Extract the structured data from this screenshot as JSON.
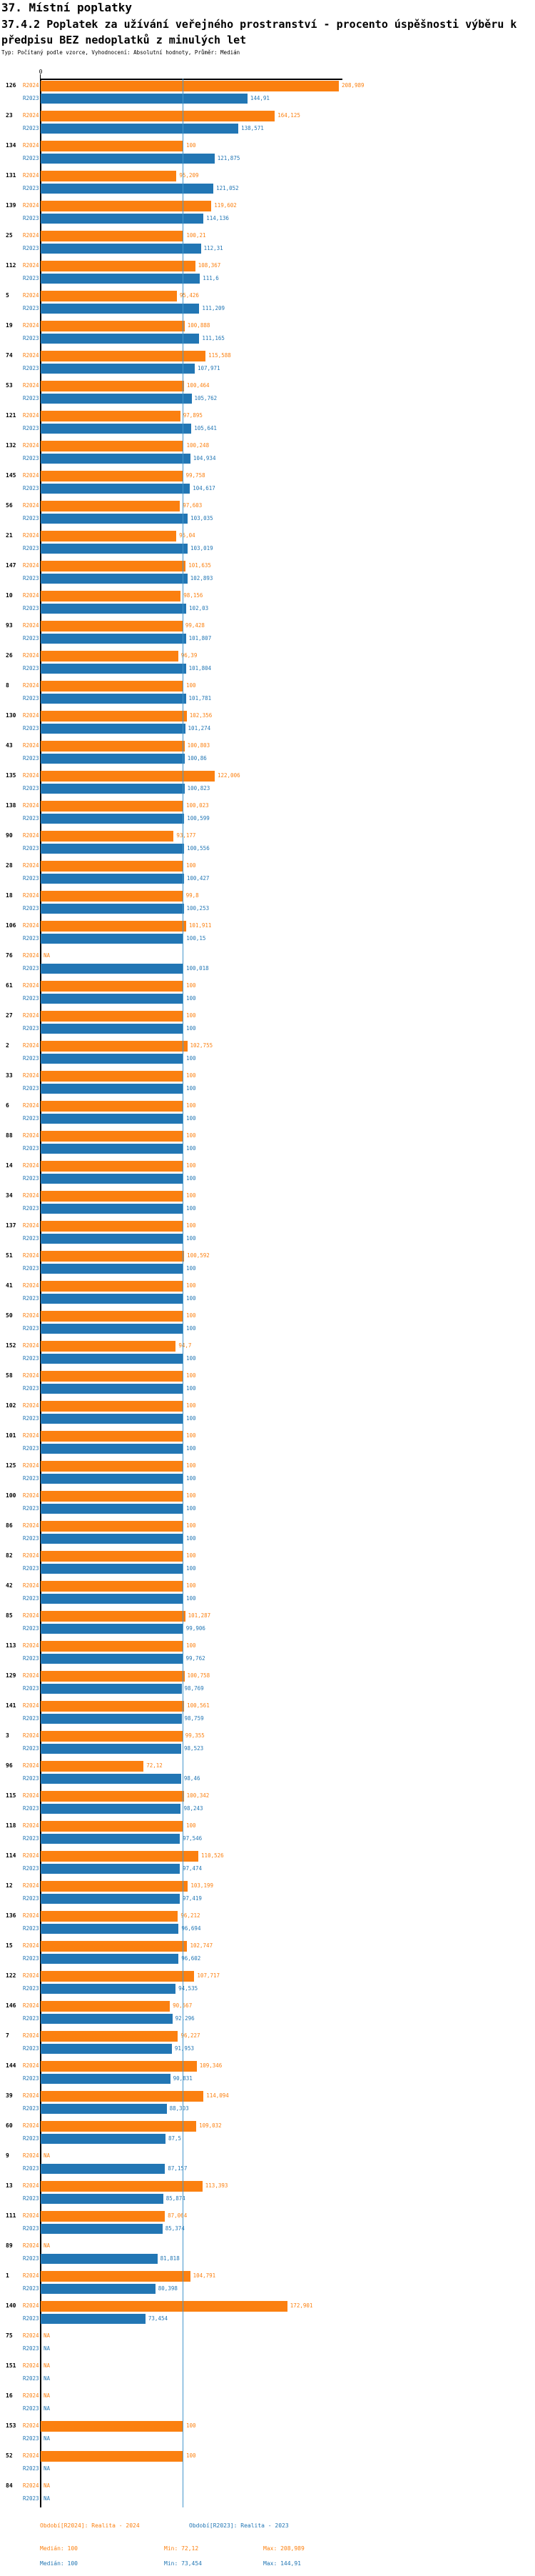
{
  "header": {
    "title": "37. Místní poplatky",
    "subtitle": "37.4.2 Poplatek za užívání veřejného prostranství - procento úspěšnosti výběru k předpisu BEZ nedoplatků z minulých let",
    "meta": "Typ: Počítaný podle vzorce, Vyhodnocení: Absolutní hodnoty, Průměr: Medián"
  },
  "chart_data": {
    "type": "bar",
    "orientation": "horizontal",
    "title": "37.4.2 Poplatek za užívání veřejného prostranství - procento úspěšnosti výběru k předpisu BEZ nedoplatků z minulých let",
    "x_axis": {
      "origin_label": "0",
      "min": 0,
      "max_visible": 211,
      "median_line_value": 100,
      "gridlines": false
    },
    "series_names": [
      "R2024",
      "R2023"
    ],
    "colors": {
      "R2024": "#fb8010",
      "R2023": "#2276b4",
      "median_line": "#4597cb"
    },
    "value_format": "decimal comma, NA = missing",
    "groups": [
      {
        "id": "126",
        "R2024": "208,989",
        "R2023": "144,91"
      },
      {
        "id": "23",
        "R2024": "164,125",
        "R2023": "138,571"
      },
      {
        "id": "134",
        "R2024": "100",
        "R2023": "121,875"
      },
      {
        "id": "131",
        "R2024": "95,209",
        "R2023": "121,052"
      },
      {
        "id": "139",
        "R2024": "119,602",
        "R2023": "114,136"
      },
      {
        "id": "25",
        "R2024": "100,21",
        "R2023": "112,31"
      },
      {
        "id": "112",
        "R2024": "108,367",
        "R2023": "111,6"
      },
      {
        "id": "5",
        "R2024": "95,426",
        "R2023": "111,209"
      },
      {
        "id": "19",
        "R2024": "100,888",
        "R2023": "111,165"
      },
      {
        "id": "74",
        "R2024": "115,588",
        "R2023": "107,971"
      },
      {
        "id": "53",
        "R2024": "100,464",
        "R2023": "105,762"
      },
      {
        "id": "121",
        "R2024": "97,895",
        "R2023": "105,641"
      },
      {
        "id": "132",
        "R2024": "100,248",
        "R2023": "104,934"
      },
      {
        "id": "145",
        "R2024": "99,758",
        "R2023": "104,617"
      },
      {
        "id": "56",
        "R2024": "97,603",
        "R2023": "103,035"
      },
      {
        "id": "21",
        "R2024": "95,04",
        "R2023": "103,019"
      },
      {
        "id": "147",
        "R2024": "101,635",
        "R2023": "102,893"
      },
      {
        "id": "10",
        "R2024": "98,156",
        "R2023": "102,03"
      },
      {
        "id": "93",
        "R2024": "99,428",
        "R2023": "101,807"
      },
      {
        "id": "26",
        "R2024": "96,39",
        "R2023": "101,804"
      },
      {
        "id": "8",
        "R2024": "100",
        "R2023": "101,781"
      },
      {
        "id": "130",
        "R2024": "102,356",
        "R2023": "101,274"
      },
      {
        "id": "43",
        "R2024": "100,803",
        "R2023": "100,86"
      },
      {
        "id": "135",
        "R2024": "122,006",
        "R2023": "100,823"
      },
      {
        "id": "138",
        "R2024": "100,023",
        "R2023": "100,599"
      },
      {
        "id": "90",
        "R2024": "93,177",
        "R2023": "100,556"
      },
      {
        "id": "28",
        "R2024": "100",
        "R2023": "100,427"
      },
      {
        "id": "18",
        "R2024": "99,8",
        "R2023": "100,253"
      },
      {
        "id": "106",
        "R2024": "101,911",
        "R2023": "100,15"
      },
      {
        "id": "76",
        "R2024": "NA",
        "R2023": "100,018"
      },
      {
        "id": "61",
        "R2024": "100",
        "R2023": "100"
      },
      {
        "id": "27",
        "R2024": "100",
        "R2023": "100"
      },
      {
        "id": "2",
        "R2024": "102,755",
        "R2023": "100"
      },
      {
        "id": "33",
        "R2024": "100",
        "R2023": "100"
      },
      {
        "id": "6",
        "R2024": "100",
        "R2023": "100"
      },
      {
        "id": "88",
        "R2024": "100",
        "R2023": "100"
      },
      {
        "id": "14",
        "R2024": "100",
        "R2023": "100"
      },
      {
        "id": "34",
        "R2024": "100",
        "R2023": "100"
      },
      {
        "id": "137",
        "R2024": "100",
        "R2023": "100"
      },
      {
        "id": "51",
        "R2024": "100,592",
        "R2023": "100"
      },
      {
        "id": "41",
        "R2024": "100",
        "R2023": "100"
      },
      {
        "id": "50",
        "R2024": "100",
        "R2023": "100"
      },
      {
        "id": "152",
        "R2024": "94,7",
        "R2023": "100"
      },
      {
        "id": "58",
        "R2024": "100",
        "R2023": "100"
      },
      {
        "id": "102",
        "R2024": "100",
        "R2023": "100"
      },
      {
        "id": "101",
        "R2024": "100",
        "R2023": "100"
      },
      {
        "id": "125",
        "R2024": "100",
        "R2023": "100"
      },
      {
        "id": "100",
        "R2024": "100",
        "R2023": "100"
      },
      {
        "id": "86",
        "R2024": "100",
        "R2023": "100"
      },
      {
        "id": "82",
        "R2024": "100",
        "R2023": "100"
      },
      {
        "id": "42",
        "R2024": "100",
        "R2023": "100"
      },
      {
        "id": "85",
        "R2024": "101,287",
        "R2023": "99,906"
      },
      {
        "id": "113",
        "R2024": "100",
        "R2023": "99,762"
      },
      {
        "id": "129",
        "R2024": "100,758",
        "R2023": "98,769"
      },
      {
        "id": "141",
        "R2024": "100,561",
        "R2023": "98,759"
      },
      {
        "id": "3",
        "R2024": "99,355",
        "R2023": "98,523"
      },
      {
        "id": "96",
        "R2024": "72,12",
        "R2023": "98,46"
      },
      {
        "id": "115",
        "R2024": "100,342",
        "R2023": "98,243"
      },
      {
        "id": "118",
        "R2024": "100",
        "R2023": "97,546"
      },
      {
        "id": "114",
        "R2024": "110,526",
        "R2023": "97,474"
      },
      {
        "id": "12",
        "R2024": "103,199",
        "R2023": "97,419"
      },
      {
        "id": "136",
        "R2024": "96,212",
        "R2023": "96,694"
      },
      {
        "id": "15",
        "R2024": "102,747",
        "R2023": "96,602"
      },
      {
        "id": "122",
        "R2024": "107,717",
        "R2023": "94,535"
      },
      {
        "id": "146",
        "R2024": "90,567",
        "R2023": "92,296"
      },
      {
        "id": "7",
        "R2024": "96,227",
        "R2023": "91,953"
      },
      {
        "id": "144",
        "R2024": "109,346",
        "R2023": "90,831"
      },
      {
        "id": "39",
        "R2024": "114,094",
        "R2023": "88,303"
      },
      {
        "id": "60",
        "R2024": "109,032",
        "R2023": "87,5"
      },
      {
        "id": "9",
        "R2024": "NA",
        "R2023": "87,157"
      },
      {
        "id": "13",
        "R2024": "113,393",
        "R2023": "85,874"
      },
      {
        "id": "111",
        "R2024": "87,064",
        "R2023": "85,374"
      },
      {
        "id": "89",
        "R2024": "NA",
        "R2023": "81,818"
      },
      {
        "id": "1",
        "R2024": "104,791",
        "R2023": "80,398"
      },
      {
        "id": "140",
        "R2024": "172,901",
        "R2023": "73,454"
      },
      {
        "id": "75",
        "R2024": "NA",
        "R2023": "NA"
      },
      {
        "id": "151",
        "R2024": "NA",
        "R2023": "NA"
      },
      {
        "id": "16",
        "R2024": "NA",
        "R2023": "NA"
      },
      {
        "id": "153",
        "R2024": "100",
        "R2023": "NA"
      },
      {
        "id": "52",
        "R2024": "100",
        "R2023": "NA"
      },
      {
        "id": "84",
        "R2024": "NA",
        "R2023": "NA"
      }
    ]
  },
  "legend": {
    "r2024_label": "Období[R2024]: Realita - 2024",
    "r2023_label": "Období[R2023]: Realita - 2023"
  },
  "stats": {
    "r2024": {
      "median": "Medián: 100",
      "min": "Min: 72,12",
      "max": "Max: 208,989"
    },
    "r2023": {
      "median": "Medián: 100",
      "min": "Min: 73,454",
      "max": "Max: 144,91"
    }
  }
}
